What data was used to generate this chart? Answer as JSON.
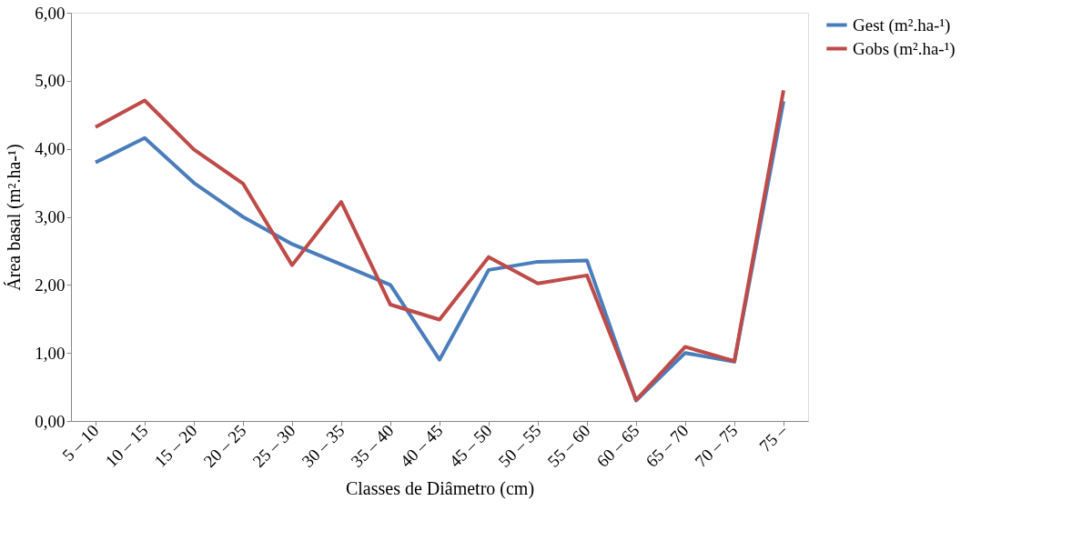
{
  "chart_data": {
    "type": "line",
    "xlabel": "Classes de Diâmetro (cm)",
    "ylabel": "Área basal (m².ha-¹)",
    "categories": [
      "5 – 10",
      "10 – 15",
      "15 – 20",
      "20 – 25",
      "25 – 30",
      "30 – 35",
      "35 – 40",
      "40 – 45",
      "45 – 50",
      "50 – 55",
      "55 – 60",
      "60 – 65",
      "65 – 70",
      "70 – 75",
      "75 –"
    ],
    "series": [
      {
        "name": "Gest (m².ha-¹)",
        "color": "#4a7ebb",
        "values": [
          3.8,
          4.16,
          3.5,
          3.0,
          2.6,
          2.3,
          2.0,
          0.9,
          2.22,
          2.34,
          2.36,
          0.3,
          1.0,
          0.87,
          4.7
        ]
      },
      {
        "name": "Gobs (m².ha-¹)",
        "color": "#be4b48",
        "values": [
          4.32,
          4.71,
          3.99,
          3.49,
          2.29,
          3.22,
          1.71,
          1.49,
          2.41,
          2.02,
          2.14,
          0.31,
          1.09,
          0.88,
          4.86
        ]
      }
    ],
    "ylim": [
      0,
      6
    ],
    "yticks": [
      {
        "value": 0,
        "label": "0,00"
      },
      {
        "value": 1,
        "label": "1,00"
      },
      {
        "value": 2,
        "label": "2,00"
      },
      {
        "value": 3,
        "label": "3,00"
      },
      {
        "value": 4,
        "label": "4,00"
      },
      {
        "value": 5,
        "label": "5,00"
      },
      {
        "value": 6,
        "label": "6,00"
      }
    ],
    "grid": false,
    "legend": "right",
    "marker": "none",
    "line_style": "solid"
  }
}
